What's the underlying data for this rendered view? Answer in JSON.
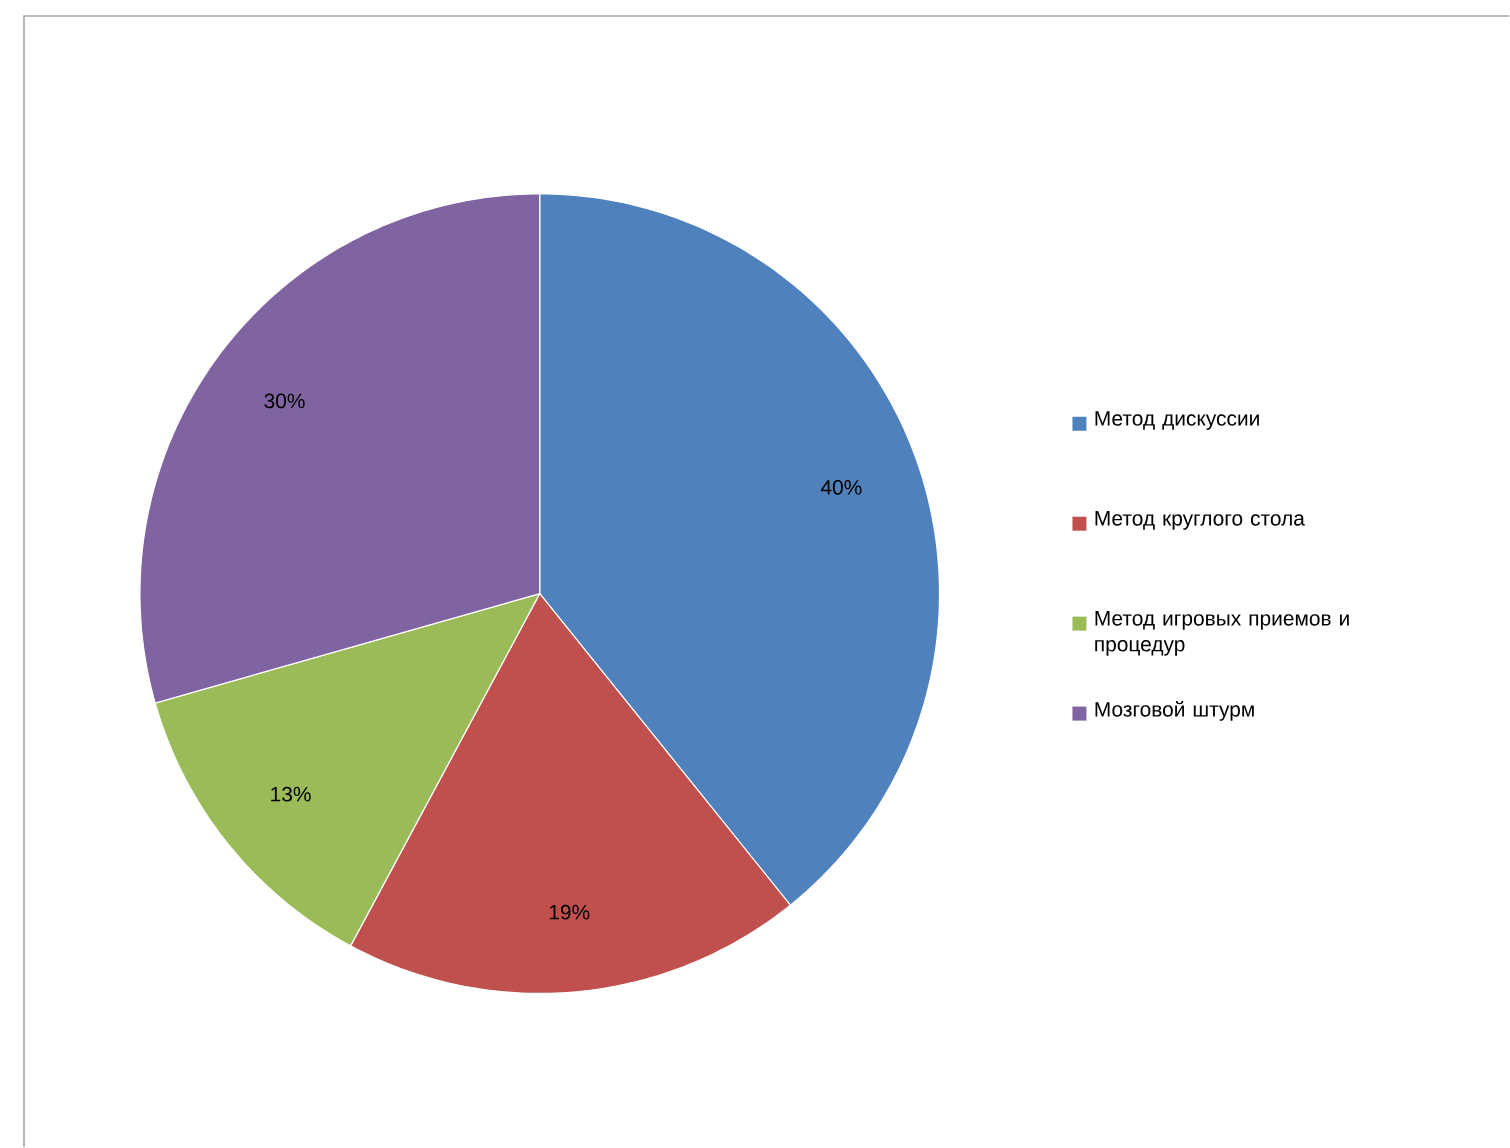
{
  "chart_data": {
    "type": "pie",
    "categories": [
      "Метод дискуссии",
      "Метод круглого стола",
      "Метод игровых приемов и процедур",
      "Мозговой штурм"
    ],
    "values": [
      40,
      19,
      13,
      30
    ],
    "value_labels": [
      "40%",
      "19%",
      "13%",
      "30%"
    ],
    "colors": [
      "#4f81bd",
      "#c0504d",
      "#9bbb59",
      "#8064a2"
    ],
    "legend": "right"
  }
}
